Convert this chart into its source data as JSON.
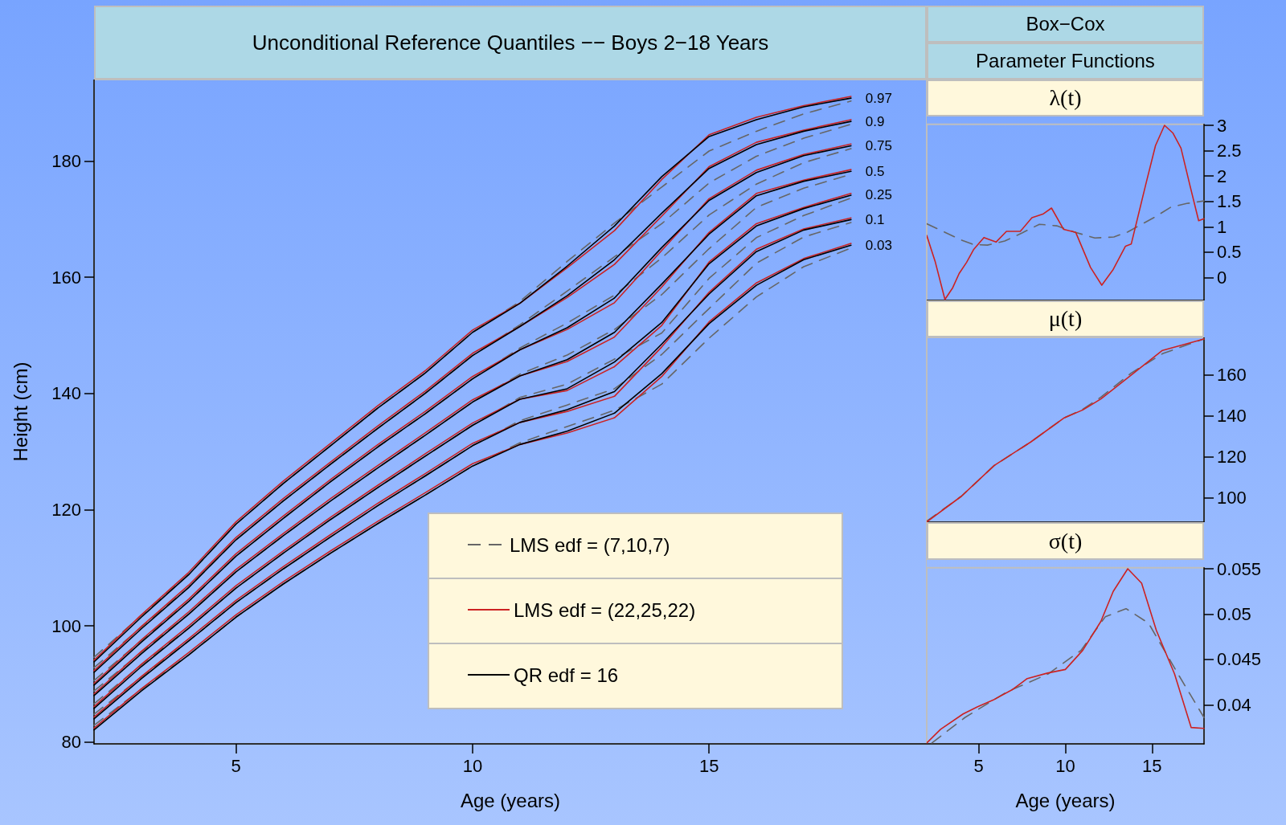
{
  "chart_data": [
    {
      "type": "line",
      "title": "Unconditional Reference Quantiles −− Boys 2−18 Years",
      "xlabel": "Age (years)",
      "ylabel": "Height (cm)",
      "xlim": [
        2,
        19.6
      ],
      "xticks": [
        5,
        10,
        15
      ],
      "ylim": [
        79.7,
        194
      ],
      "yticks": [
        80,
        100,
        120,
        140,
        160,
        180
      ],
      "marker": "none",
      "legend": "bottom right",
      "x": [
        2,
        3,
        4,
        5,
        6,
        7,
        8,
        9,
        10,
        11,
        12,
        13,
        14,
        15,
        16,
        17,
        18
      ],
      "series": [
        {
          "name": "LMS edf = (7,10,7)",
          "color": "#666666",
          "line_style": "dashed",
          "values": [
            94.6,
            101.8,
            108.8,
            117.5,
            124.5,
            131,
            137.5,
            143.5,
            150.5,
            155.8,
            162.7,
            169.3,
            175.5,
            181.7,
            185.1,
            188.1,
            190.3
          ]
        },
        {
          "color": "#666666",
          "line_style": "dashed",
          "values": [
            92.8,
            99.8,
            106.6,
            114.8,
            121.5,
            127.8,
            134,
            140,
            146.5,
            151.8,
            157.6,
            163.5,
            169.2,
            176.2,
            180.8,
            183.9,
            186.3
          ]
        },
        {
          "color": "#666666",
          "line_style": "dashed",
          "values": [
            90.6,
            97.5,
            104.2,
            112,
            118.5,
            124.8,
            130.8,
            136.5,
            142.5,
            147.8,
            152.1,
            156.9,
            163.3,
            170.7,
            176.0,
            179.7,
            182.1
          ]
        },
        {
          "color": "#666666",
          "line_style": "dashed",
          "values": [
            88.8,
            95.5,
            102,
            109.3,
            115.5,
            121.5,
            127.2,
            132.8,
            138.5,
            143.3,
            146.6,
            151.0,
            157.0,
            164.9,
            172.0,
            175.3,
            177.7
          ]
        },
        {
          "color": "#666666",
          "line_style": "dashed",
          "values": [
            86.6,
            93.3,
            99.6,
            106.5,
            112.5,
            118.3,
            123.8,
            129.2,
            134.5,
            139.3,
            141.6,
            145.9,
            150.4,
            159.8,
            166.8,
            170.6,
            173.6
          ]
        },
        {
          "color": "#666666",
          "line_style": "dashed",
          "values": [
            84.8,
            91.2,
            97.4,
            104,
            109.8,
            115.3,
            120.7,
            125.8,
            131,
            135.3,
            138.0,
            140.8,
            146.7,
            154.6,
            162.4,
            166.9,
            169.4
          ]
        },
        {
          "color": "#666666",
          "line_style": "dashed",
          "values": [
            82.9,
            89.1,
            95,
            101.5,
            107.2,
            112.5,
            117.6,
            122.5,
            127.5,
            131.5,
            134.3,
            137.1,
            141.6,
            149.5,
            156.6,
            161.8,
            165.0
          ]
        },
        {
          "name": "LMS edf = (22,25,22)",
          "color": "#cc2222",
          "line_style": "solid",
          "values": [
            94.1,
            101.9,
            109.2,
            117.9,
            124.9,
            131.4,
            137.9,
            143.9,
            150.9,
            155.5,
            161.6,
            168.0,
            176.8,
            184.5,
            187.5,
            189.5,
            191.1
          ]
        },
        {
          "color": "#cc2222",
          "line_style": "solid",
          "values": [
            92.3,
            99.9,
            107.0,
            115.2,
            121.9,
            128.2,
            134.4,
            140.4,
            146.9,
            151.5,
            156.5,
            162.2,
            170.5,
            179.0,
            183.2,
            185.3,
            187.1
          ]
        },
        {
          "color": "#cc2222",
          "line_style": "solid",
          "values": [
            90.1,
            97.6,
            104.6,
            112.4,
            118.9,
            125.2,
            131.2,
            136.9,
            142.9,
            147.5,
            151.0,
            155.6,
            164.6,
            173.5,
            178.4,
            181.1,
            182.9
          ]
        },
        {
          "color": "#cc2222",
          "line_style": "solid",
          "values": [
            88.3,
            95.6,
            102.4,
            109.7,
            115.9,
            121.9,
            127.6,
            133.2,
            138.9,
            143,
            145.5,
            149.7,
            158.3,
            167.7,
            174.4,
            176.7,
            178.5
          ]
        },
        {
          "color": "#cc2222",
          "line_style": "solid",
          "values": [
            86.1,
            93.4,
            100.0,
            106.9,
            112.9,
            118.7,
            124.2,
            129.6,
            134.9,
            139,
            140.5,
            144.6,
            151.7,
            162.6,
            169.2,
            172.0,
            174.4
          ]
        },
        {
          "color": "#cc2222",
          "line_style": "solid",
          "values": [
            84.3,
            91.3,
            97.8,
            104.4,
            110.2,
            115.7,
            121.1,
            126.2,
            131.4,
            135,
            136.9,
            139.5,
            148.0,
            157.4,
            164.8,
            168.3,
            170.2
          ]
        },
        {
          "color": "#cc2222",
          "line_style": "solid",
          "values": [
            82.4,
            89.2,
            95.4,
            101.9,
            107.6,
            112.9,
            118.0,
            122.9,
            127.9,
            131.2,
            133.2,
            135.8,
            142.9,
            152.3,
            159.0,
            163.2,
            165.8
          ]
        },
        {
          "name": "QR edf = 16",
          "color": "#000000",
          "line_style": "solid",
          "values": [
            93.8,
            101.5,
            108.8,
            117.5,
            124.5,
            131,
            137.5,
            143.5,
            150.5,
            155.5,
            161.9,
            168.8,
            177.3,
            184.2,
            187.1,
            189.3,
            190.8
          ]
        },
        {
          "color": "#000000",
          "line_style": "solid",
          "values": [
            92.0,
            99.5,
            106.6,
            114.8,
            121.5,
            127.8,
            134,
            140,
            146.5,
            151.5,
            156.8,
            163.0,
            171.0,
            178.7,
            182.8,
            185.1,
            186.8
          ]
        },
        {
          "color": "#000000",
          "line_style": "solid",
          "values": [
            89.8,
            97.2,
            104.2,
            112,
            118.5,
            124.8,
            130.8,
            136.5,
            142.5,
            147.5,
            151.3,
            156.4,
            165.1,
            173.2,
            178,
            180.9,
            182.6
          ]
        },
        {
          "color": "#000000",
          "line_style": "solid",
          "values": [
            88.0,
            95.2,
            102,
            109.3,
            115.5,
            121.5,
            127.2,
            132.8,
            138.5,
            143,
            145.8,
            150.5,
            158.8,
            167.4,
            174,
            176.5,
            178.2
          ]
        },
        {
          "color": "#000000",
          "line_style": "solid",
          "values": [
            85.8,
            93,
            99.6,
            106.5,
            112.5,
            118.3,
            123.8,
            129.2,
            134.5,
            139,
            140.8,
            145.4,
            152.2,
            162.3,
            168.8,
            171.8,
            174.1
          ]
        },
        {
          "color": "#000000",
          "line_style": "solid",
          "values": [
            84.0,
            90.9,
            97.4,
            104,
            109.8,
            115.3,
            120.7,
            125.8,
            131,
            135,
            137.2,
            140.3,
            148.5,
            157.1,
            164.4,
            168.1,
            169.9
          ]
        },
        {
          "color": "#000000",
          "line_style": "solid",
          "values": [
            82.1,
            88.8,
            95,
            101.5,
            107.2,
            112.5,
            117.6,
            122.5,
            127.5,
            131.2,
            133.5,
            136.6,
            143.4,
            152,
            158.6,
            163,
            165.5
          ]
        }
      ],
      "annotations": [
        "0.97",
        "0.9",
        "0.75",
        "0.5",
        "0.25",
        "0.1",
        "0.03"
      ]
    },
    {
      "type": "line",
      "title": "λ(t)",
      "annotations": [
        "Box−Cox",
        "Parameter Functions"
      ],
      "xlim": [
        2,
        18
      ],
      "ylim": [
        -0.45,
        3.02
      ],
      "yticks": [
        0,
        0.5,
        1,
        1.5,
        2,
        2.5,
        3
      ],
      "tick_labels": "y",
      "marker": "none",
      "series": [
        {
          "color": "#666666",
          "line_style": "dashed",
          "x": [
            2,
            3,
            4,
            4.7,
            5.5,
            6.5,
            7.5,
            8.5,
            9.5,
            10.5,
            11.7,
            12.8,
            13.6,
            14.4,
            15.2,
            16.1,
            17,
            18
          ],
          "values": [
            1.06,
            0.9,
            0.74,
            0.65,
            0.64,
            0.72,
            0.88,
            1.05,
            1.02,
            0.9,
            0.78,
            0.8,
            0.9,
            1.05,
            1.2,
            1.39,
            1.46,
            1.51
          ]
        },
        {
          "color": "#cc2222",
          "line_style": "solid",
          "x": [
            2,
            2.5,
            3.05,
            3.5,
            3.87,
            4.3,
            4.7,
            5.3,
            6.0,
            6.6,
            7.4,
            8.07,
            8.7,
            9.2,
            9.9,
            10.6,
            11.45,
            12.1,
            12.76,
            13.47,
            13.8,
            14.65,
            15.2,
            15.72,
            16.2,
            16.67,
            17.2,
            17.69,
            18
          ],
          "values": [
            0.83,
            0.3,
            -0.43,
            -0.2,
            0.08,
            0.3,
            0.55,
            0.79,
            0.7,
            0.91,
            0.91,
            1.18,
            1.25,
            1.37,
            0.95,
            0.89,
            0.2,
            -0.15,
            0.16,
            0.62,
            0.66,
            1.85,
            2.6,
            3.0,
            2.85,
            2.55,
            1.8,
            1.12,
            1.16
          ]
        }
      ]
    },
    {
      "type": "line",
      "title": "μ(t)",
      "xlim": [
        2,
        18
      ],
      "ylim": [
        87.9,
        178.5
      ],
      "yticks": [
        100,
        120,
        140,
        160
      ],
      "tick_labels": "y",
      "marker": "none",
      "series": [
        {
          "color": "#666666",
          "line_style": "dashed",
          "x": [
            2,
            4,
            5.9,
            8,
            9.9,
            11,
            12.05,
            13.8,
            15.6,
            18
          ],
          "values": [
            88.4,
            100.6,
            115.7,
            127.2,
            138.9,
            143.2,
            149.2,
            161.0,
            170.5,
            177.8
          ]
        },
        {
          "color": "#cc2222",
          "line_style": "solid",
          "x": [
            2,
            4,
            5.9,
            8,
            9.9,
            11,
            12.05,
            13.8,
            15.6,
            18
          ],
          "values": [
            88.0,
            100.6,
            115.7,
            127.2,
            138.9,
            142.9,
            148.3,
            160.0,
            172.1,
            177.7
          ]
        }
      ]
    },
    {
      "type": "line",
      "title": "σ(t)",
      "xlabel": "Age (years)",
      "xlim": [
        2,
        18
      ],
      "xticks": [
        5,
        10,
        15
      ],
      "ylim": [
        0.0357,
        0.0551
      ],
      "yticks": [
        0.04,
        0.045,
        0.05,
        0.055
      ],
      "marker": "none",
      "series": [
        {
          "color": "#666666",
          "line_style": "dashed",
          "x": [
            2.3,
            4.2,
            6.6,
            9.0,
            10.9,
            12.3,
            13.5,
            14.8,
            16.5,
            18
          ],
          "values": [
            0.0358,
            0.0386,
            0.0414,
            0.0434,
            0.046,
            0.0497,
            0.0506,
            0.049,
            0.0434,
            0.0386
          ]
        },
        {
          "color": "#cc2222",
          "line_style": "solid",
          "x": [
            2,
            2.8,
            4.1,
            4.94,
            5.9,
            6.96,
            7.8,
            8.97,
            10.0,
            11.0,
            12.05,
            12.76,
            13.6,
            14.4,
            15.25,
            16.3,
            17.26,
            18
          ],
          "values": [
            0.0358,
            0.0373,
            0.039,
            0.0398,
            0.0406,
            0.0417,
            0.0429,
            0.0435,
            0.0439,
            0.046,
            0.0492,
            0.0525,
            0.055,
            0.0534,
            0.0482,
            0.0434,
            0.0375,
            0.0374
          ]
        }
      ]
    }
  ]
}
